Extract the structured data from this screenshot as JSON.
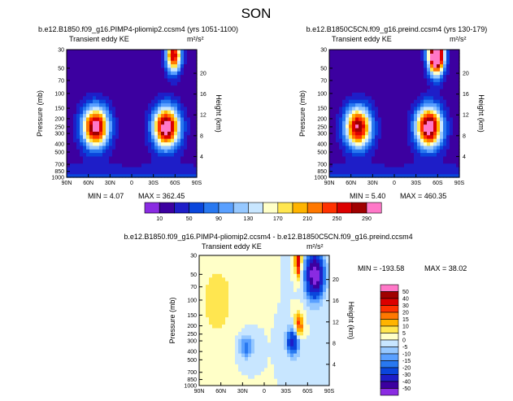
{
  "page_title": "SON",
  "palettes": {
    "ke": [
      "#8a2be2",
      "#3c00a0",
      "#1e1ec8",
      "#0a46dc",
      "#2878f0",
      "#5aa0ff",
      "#96c8ff",
      "#c8e6ff",
      "#ffffc8",
      "#ffe650",
      "#ffb400",
      "#ff7800",
      "#ff3200",
      "#dc0000",
      "#a00000",
      "#ff78c8"
    ],
    "diff": [
      "#8a2be2",
      "#3c00a0",
      "#1e1ec8",
      "#0a46dc",
      "#2878f0",
      "#5aa0ff",
      "#96c8ff",
      "#c8e6ff",
      "#ffffc8",
      "#ffe650",
      "#ffb400",
      "#ff7800",
      "#ff3200",
      "#dc0000",
      "#a00000",
      "#ff78c8"
    ]
  },
  "chart_data": [
    {
      "type": "heatmap",
      "title": "b.e12.B1850.f09_g16.PIMP4-pliomip2.ccsm4 (yrs 1051-1100)",
      "variable": "Transient eddy KE",
      "units": "m²/s²",
      "xlabel": "",
      "ylabel": "Pressure (mb)",
      "y2label": "Height (km)",
      "x_ticks": [
        "90N",
        "60N",
        "30N",
        "0",
        "30S",
        "60S",
        "90S"
      ],
      "x_range": [
        90,
        -90
      ],
      "y_ticks": [
        30,
        50,
        70,
        100,
        150,
        200,
        250,
        300,
        400,
        500,
        700,
        850,
        1000
      ],
      "y_range": [
        1000,
        30
      ],
      "height_ticks": [
        4,
        8,
        12,
        16,
        20
      ],
      "min_label": "MIN =   4.07",
      "max_label": "MAX = 362.45",
      "min": 4.07,
      "max": 362.45,
      "features": [
        {
          "lat": 50,
          "p": 250,
          "peak": 340,
          "dlat": 18,
          "dlnp": 0.55
        },
        {
          "lat": -48,
          "p": 250,
          "peak": 355,
          "dlat": 18,
          "dlnp": 0.55
        },
        {
          "lat": -58,
          "p": 35,
          "peak": 300,
          "dlat": 10,
          "dlnp": 0.45
        }
      ]
    },
    {
      "type": "heatmap",
      "title": "b.e12.B1850C5CN.f09_g16.preind.ccsm4 (yrs 130-179)",
      "variable": "Transient eddy KE",
      "units": "m²/s²",
      "xlabel": "",
      "ylabel": "Pressure (mb)",
      "y2label": "Height (km)",
      "x_ticks": [
        "90N",
        "60N",
        "30N",
        "0",
        "30S",
        "60S",
        "90S"
      ],
      "x_range": [
        90,
        -90
      ],
      "y_ticks": [
        30,
        50,
        70,
        100,
        150,
        200,
        250,
        300,
        400,
        500,
        700,
        850,
        1000
      ],
      "y_range": [
        1000,
        30
      ],
      "height_ticks": [
        4,
        8,
        12,
        16,
        20
      ],
      "min_label": "MIN =   5.40",
      "max_label": "MAX = 460.35",
      "min": 5.4,
      "max": 460.35,
      "features": [
        {
          "lat": 50,
          "p": 250,
          "peak": 320,
          "dlat": 18,
          "dlnp": 0.55
        },
        {
          "lat": -48,
          "p": 250,
          "peak": 360,
          "dlat": 18,
          "dlnp": 0.55
        },
        {
          "lat": -58,
          "p": 35,
          "peak": 450,
          "dlat": 11,
          "dlnp": 0.5
        }
      ]
    },
    {
      "type": "heatmap",
      "title": "b.e12.B1850.f09_g16.PIMP4-pliomip2.ccsm4 - b.e12.B1850C5CN.f09_g16.preind.ccsm4",
      "variable": "Transient eddy KE",
      "units": "m²/s²",
      "xlabel": "",
      "ylabel": "Pressure (mb)",
      "y2label": "Height (km)",
      "x_ticks": [
        "90N",
        "60N",
        "30N",
        "0",
        "30S",
        "60S",
        "90S"
      ],
      "x_range": [
        90,
        -90
      ],
      "y_ticks": [
        30,
        50,
        70,
        100,
        150,
        200,
        250,
        300,
        400,
        500,
        700,
        850,
        1000
      ],
      "y_range": [
        1000,
        30
      ],
      "height_ticks": [
        4,
        8,
        12,
        16,
        20
      ],
      "min_label": "MIN = -193.58",
      "max_label": "MAX =  38.02",
      "min": -193.58,
      "max": 38.02,
      "features": [
        {
          "lat": 65,
          "p": 100,
          "peak": 8,
          "dlat": 25,
          "dlnp": 1.1
        },
        {
          "lat": -48,
          "p": 200,
          "peak": 25,
          "dlat": 6,
          "dlnp": 0.35
        },
        {
          "lat": -47,
          "p": 35,
          "peak": 38,
          "dlat": 4,
          "dlnp": 0.4
        },
        {
          "lat": -70,
          "p": 50,
          "peak": -60,
          "dlat": 12,
          "dlnp": 0.6
        },
        {
          "lat": -40,
          "p": 300,
          "peak": -35,
          "dlat": 9,
          "dlnp": 0.35
        },
        {
          "lat": 25,
          "p": 350,
          "peak": -18,
          "dlat": 10,
          "dlnp": 0.3
        }
      ]
    }
  ],
  "colorbars": {
    "ke": {
      "labels": [
        "10",
        "50",
        "90",
        "130",
        "170",
        "210",
        "250",
        "290"
      ]
    },
    "diff": {
      "labels": [
        "50",
        "40",
        "30",
        "20",
        "15",
        "10",
        "5",
        "0",
        "-5",
        "-10",
        "-15",
        "-20",
        "-30",
        "-40",
        "-50"
      ]
    }
  }
}
